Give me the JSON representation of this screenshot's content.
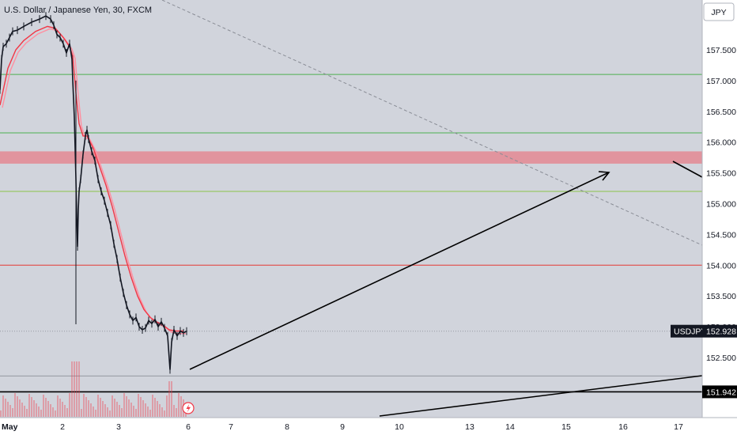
{
  "header": {
    "title": "U.S. Dollar / Japanese Yen, 30, FXCM",
    "currency_button": "JPY"
  },
  "chart_data": {
    "type": "line",
    "symbol": "USDJPY",
    "title": "U.S. Dollar / Japanese Yen, 30, FXCM",
    "ylim": [
      151.7,
      158.3
    ],
    "x_tick_labels": [
      "May",
      "2",
      "3",
      "6",
      "7",
      "8",
      "9",
      "10",
      "13",
      "14",
      "15",
      "16",
      "17"
    ],
    "y_tick_labels": [
      "157.500",
      "157.000",
      "156.500",
      "156.000",
      "155.500",
      "155.000",
      "154.500",
      "154.000",
      "153.500",
      "153.000",
      "152.500"
    ],
    "price_badges": [
      {
        "label": "USDJPY",
        "value": "152.928"
      },
      {
        "value": "151.942"
      }
    ],
    "price_series": [
      [
        0,
        156.85
      ],
      [
        2,
        157.35
      ],
      [
        4,
        157.55
      ],
      [
        8,
        157.6
      ],
      [
        12,
        157.7
      ],
      [
        16,
        157.8
      ],
      [
        22,
        157.82
      ],
      [
        30,
        157.88
      ],
      [
        40,
        157.95
      ],
      [
        50,
        158.0
      ],
      [
        58,
        158.05
      ],
      [
        64,
        158.0
      ],
      [
        68,
        157.9
      ],
      [
        72,
        157.75
      ],
      [
        76,
        157.7
      ],
      [
        80,
        157.6
      ],
      [
        84,
        157.45
      ],
      [
        88,
        157.6
      ],
      [
        91,
        157.35
      ],
      [
        92,
        157.0
      ],
      [
        94,
        156.4
      ],
      [
        96,
        155.4
      ],
      [
        97,
        154.8
      ],
      [
        98,
        154.3
      ],
      [
        99,
        154.9
      ],
      [
        100,
        155.2
      ],
      [
        102,
        155.4
      ],
      [
        105,
        155.8
      ],
      [
        108,
        156.1
      ],
      [
        110,
        156.2
      ],
      [
        112,
        156.05
      ],
      [
        116,
        155.85
      ],
      [
        120,
        155.7
      ],
      [
        124,
        155.4
      ],
      [
        128,
        155.2
      ],
      [
        132,
        155.05
      ],
      [
        136,
        154.85
      ],
      [
        140,
        154.65
      ],
      [
        144,
        154.35
      ],
      [
        148,
        154.1
      ],
      [
        152,
        153.8
      ],
      [
        156,
        153.55
      ],
      [
        160,
        153.35
      ],
      [
        164,
        153.2
      ],
      [
        168,
        153.1
      ],
      [
        172,
        153.15
      ],
      [
        176,
        153.0
      ],
      [
        180,
        152.95
      ],
      [
        184,
        152.98
      ],
      [
        188,
        153.1
      ],
      [
        192,
        153.05
      ],
      [
        196,
        153.12
      ],
      [
        200,
        153.0
      ],
      [
        204,
        153.08
      ],
      [
        208,
        152.98
      ],
      [
        212,
        152.85
      ],
      [
        215,
        152.3
      ],
      [
        217,
        152.75
      ],
      [
        220,
        152.95
      ],
      [
        224,
        152.85
      ],
      [
        228,
        152.93
      ],
      [
        232,
        152.9
      ],
      [
        236,
        152.928
      ]
    ],
    "ema_series": [
      [
        0,
        156.6
      ],
      [
        10,
        157.2
      ],
      [
        20,
        157.5
      ],
      [
        30,
        157.65
      ],
      [
        45,
        157.8
      ],
      [
        60,
        157.88
      ],
      [
        70,
        157.85
      ],
      [
        80,
        157.7
      ],
      [
        88,
        157.55
      ],
      [
        92,
        157.4
      ],
      [
        96,
        156.8
      ],
      [
        100,
        156.3
      ],
      [
        105,
        156.1
      ],
      [
        110,
        156.1
      ],
      [
        118,
        155.9
      ],
      [
        126,
        155.6
      ],
      [
        134,
        155.3
      ],
      [
        142,
        154.95
      ],
      [
        150,
        154.55
      ],
      [
        158,
        154.15
      ],
      [
        166,
        153.8
      ],
      [
        174,
        153.5
      ],
      [
        182,
        153.28
      ],
      [
        190,
        153.15
      ],
      [
        198,
        153.08
      ],
      [
        206,
        153.03
      ],
      [
        214,
        152.95
      ],
      [
        222,
        152.93
      ],
      [
        232,
        152.93
      ]
    ],
    "horizontal_levels": [
      {
        "price": 157.1,
        "color": "#4caf50"
      },
      {
        "price": 156.15,
        "color": "#4caf50"
      },
      {
        "price": 155.2,
        "color": "#8bc34a"
      },
      {
        "price": 154.0,
        "color": "#e53935"
      },
      {
        "price": 152.928,
        "color": "#9598a1",
        "style": "dotted"
      },
      {
        "price": 152.2,
        "color": "#9598a1"
      },
      {
        "price": 151.942,
        "color": "#000000"
      }
    ],
    "zone": {
      "from": 155.65,
      "to": 155.85,
      "color": "#e57f8a"
    }
  },
  "colors": {
    "background": "#d1d4dc",
    "axis_bg": "#ffffff",
    "candles": "#131722",
    "ema_fast": "#f23645",
    "ema_slow": "#ff8fa0",
    "volume": "#f23645"
  },
  "icons": {
    "event": "lightning-icon"
  }
}
